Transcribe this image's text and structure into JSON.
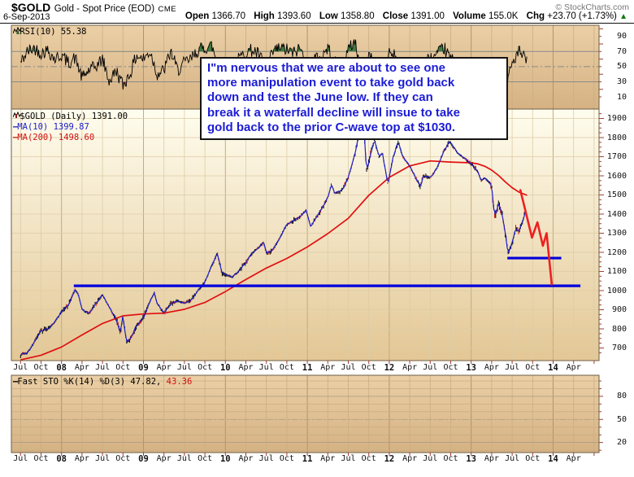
{
  "header": {
    "symbol": "$GOLD",
    "description": "Gold - Spot Price (EOD)",
    "exchange": "CME",
    "copyright": "© StockCharts.com",
    "date": "6-Sep-2013",
    "quote": {
      "open_label": "Open",
      "open": "1366.70",
      "high_label": "High",
      "high": "1393.60",
      "low_label": "Low",
      "low": "1358.80",
      "close_label": "Close",
      "close": "1391.00",
      "volume_label": "Volume",
      "volume": "155.0K",
      "chg_label": "Chg",
      "chg": "+23.70 (+1.73%)",
      "direction_icon": "▲"
    }
  },
  "rsi_panel": {
    "label": "RSI(10) 55.38"
  },
  "price_panel": {
    "symbol_line": "$GOLD (Daily) 1391.00",
    "ma10_label": "MA(10) 1399.87",
    "ma200_label": "MA(200) 1498.60",
    "dash": "—"
  },
  "sto_panel": {
    "label_black": "Fast STO %K(14) %D(3) 47.82,",
    "label_red": "43.36",
    "dash": "—"
  },
  "annotation": {
    "lines": [
      "I\"m nervous that we are about to see one",
      "more manipulation event to take gold back",
      "down and test the June low. If they can",
      "break it a waterfall decline will insue to take",
      "gold back to the prior C-wave top at $1030."
    ]
  },
  "colors": {
    "panel_tan_top": "#ebcfa6",
    "panel_tan_bottom": "#d5b283",
    "panel_cream_top": "#fffdee",
    "panel_cream_bottom": "#e3c795",
    "grid_tan": "#c9ae83",
    "grid_tan_year": "#b2946a",
    "grid_cream": "#ddcca6",
    "grid_cream_year": "#c4ab7f",
    "border": "#6e5e46",
    "rsi_line": "#000000",
    "rsi_fill_over": "#3e7a3e",
    "rsi_fill_under": "#c04040",
    "level_line": "#8a8a8a",
    "candle_black": "#000000",
    "candle_red": "#cc1111",
    "ma10": "#2020c8",
    "ma200": "#e01010",
    "support_blue": "#0000dd",
    "projection_red": "#ee2020",
    "tick": "#a04030",
    "annotation_blue": "#1c1cd6",
    "up_green": "#067a06"
  },
  "chart_data": [
    {
      "type": "line",
      "panel": "rsi",
      "title": "RSI(10)",
      "last_value": 55.38,
      "overbought": 70,
      "midline": 50,
      "oversold": 30,
      "ylim": [
        0,
        100
      ],
      "yticks": [
        90,
        70,
        50,
        30,
        10
      ],
      "anchors_month_value": [
        [
          -6,
          55
        ],
        [
          -5,
          70
        ],
        [
          -4,
          75
        ],
        [
          -3,
          68
        ],
        [
          -2,
          72
        ],
        [
          -1,
          60
        ],
        [
          0,
          65
        ],
        [
          1,
          55
        ],
        [
          2,
          62
        ],
        [
          3,
          35
        ],
        [
          4,
          45
        ],
        [
          5,
          50
        ],
        [
          6,
          60
        ],
        [
          7,
          30
        ],
        [
          8,
          45
        ],
        [
          9,
          25
        ],
        [
          10,
          40
        ],
        [
          11,
          65
        ],
        [
          12,
          60
        ],
        [
          13,
          70
        ],
        [
          14,
          40
        ],
        [
          15,
          45
        ],
        [
          16,
          70
        ],
        [
          17,
          45
        ],
        [
          18,
          55
        ],
        [
          19,
          60
        ],
        [
          20,
          72
        ],
        [
          21,
          75
        ],
        [
          22,
          78
        ],
        [
          23,
          50
        ],
        [
          24,
          40
        ],
        [
          25,
          55
        ],
        [
          26,
          60
        ],
        [
          27,
          70
        ],
        [
          28,
          72
        ],
        [
          29,
          65
        ],
        [
          30,
          45
        ],
        [
          31,
          70
        ],
        [
          32,
          75
        ],
        [
          33,
          72
        ],
        [
          34,
          68
        ],
        [
          35,
          75
        ],
        [
          36,
          45
        ],
        [
          37,
          60
        ],
        [
          38,
          62
        ],
        [
          39,
          75
        ],
        [
          40,
          55
        ],
        [
          41,
          50
        ],
        [
          42,
          72
        ],
        [
          43,
          85
        ],
        [
          44,
          35
        ],
        [
          45,
          65
        ],
        [
          46,
          55
        ],
        [
          47,
          35
        ],
        [
          48,
          70
        ],
        [
          49,
          65
        ],
        [
          50,
          45
        ],
        [
          51,
          50
        ],
        [
          52,
          30
        ],
        [
          53,
          55
        ],
        [
          54,
          60
        ],
        [
          55,
          65
        ],
        [
          56,
          75
        ],
        [
          57,
          60
        ],
        [
          58,
          55
        ],
        [
          59,
          48
        ],
        [
          60,
          50
        ],
        [
          61,
          30
        ],
        [
          62,
          50
        ],
        [
          63,
          25
        ],
        [
          64,
          45
        ],
        [
          65,
          22
        ],
        [
          66,
          55
        ],
        [
          67,
          70
        ],
        [
          68.2,
          55.38
        ]
      ]
    },
    {
      "type": "candlestick",
      "panel": "price",
      "title": "$GOLD Daily close",
      "last_close": 1391.0,
      "ma10": 1399.87,
      "ma200": 1498.6,
      "ylim": [
        650,
        1950
      ],
      "yticks": [
        1900,
        1800,
        1700,
        1600,
        1500,
        1400,
        1300,
        1200,
        1100,
        1000,
        900,
        800,
        700
      ],
      "price_anchors_month_value": [
        [
          -6,
          665
        ],
        [
          -5,
          675
        ],
        [
          -4,
          730
        ],
        [
          -3,
          792
        ],
        [
          -2,
          800
        ],
        [
          -1,
          835
        ],
        [
          0,
          890
        ],
        [
          1,
          925
        ],
        [
          2,
          1005
        ],
        [
          2.5,
          975
        ],
        [
          3,
          900
        ],
        [
          4,
          880
        ],
        [
          5,
          930
        ],
        [
          6,
          978
        ],
        [
          7,
          912
        ],
        [
          8,
          850
        ],
        [
          8.6,
          780
        ],
        [
          9,
          870
        ],
        [
          9.5,
          730
        ],
        [
          10,
          745
        ],
        [
          11,
          815
        ],
        [
          12,
          860
        ],
        [
          13,
          945
        ],
        [
          13.6,
          990
        ],
        [
          14,
          935
        ],
        [
          15,
          880
        ],
        [
          16,
          930
        ],
        [
          17,
          945
        ],
        [
          18,
          935
        ],
        [
          19,
          950
        ],
        [
          20,
          1000
        ],
        [
          21,
          1045
        ],
        [
          22,
          1130
        ],
        [
          22.8,
          1195
        ],
        [
          23.5,
          1090
        ],
        [
          24,
          1085
        ],
        [
          25,
          1070
        ],
        [
          26,
          1105
        ],
        [
          27,
          1145
        ],
        [
          28,
          1200
        ],
        [
          29,
          1230
        ],
        [
          29.6,
          1255
        ],
        [
          30,
          1195
        ],
        [
          31,
          1215
        ],
        [
          32,
          1280
        ],
        [
          33,
          1345
        ],
        [
          34,
          1365
        ],
        [
          35,
          1390
        ],
        [
          35.8,
          1420
        ],
        [
          36.5,
          1335
        ],
        [
          37,
          1365
        ],
        [
          38,
          1420
        ],
        [
          39,
          1485
        ],
        [
          39.5,
          1555
        ],
        [
          40,
          1510
        ],
        [
          41,
          1520
        ],
        [
          42,
          1590
        ],
        [
          43,
          1720
        ],
        [
          43.8,
          1870
        ],
        [
          44.2,
          1895
        ],
        [
          44.7,
          1620
        ],
        [
          45,
          1670
        ],
        [
          45.8,
          1790
        ],
        [
          46.5,
          1700
        ],
        [
          47,
          1720
        ],
        [
          47.8,
          1555
        ],
        [
          48.5,
          1690
        ],
        [
          49.3,
          1780
        ],
        [
          50,
          1700
        ],
        [
          51,
          1650
        ],
        [
          52,
          1580
        ],
        [
          52.6,
          1545
        ],
        [
          53,
          1600
        ],
        [
          54,
          1590
        ],
        [
          55,
          1640
        ],
        [
          56,
          1730
        ],
        [
          56.8,
          1780
        ],
        [
          57.5,
          1745
        ],
        [
          58,
          1720
        ],
        [
          59,
          1690
        ],
        [
          60,
          1665
        ],
        [
          61,
          1620
        ],
        [
          61.5,
          1575
        ],
        [
          62,
          1590
        ],
        [
          63,
          1550
        ],
        [
          63.4,
          1390
        ],
        [
          63.8,
          1420
        ],
        [
          64,
          1455
        ],
        [
          64.5,
          1400
        ],
        [
          65,
          1300
        ],
        [
          65.4,
          1190
        ],
        [
          66,
          1250
        ],
        [
          66.5,
          1320
        ],
        [
          67,
          1310
        ],
        [
          67.6,
          1370
        ],
        [
          67.9,
          1415
        ],
        [
          68.2,
          1391
        ]
      ],
      "ma200_anchors_month_value": [
        [
          -6,
          638
        ],
        [
          -3,
          662
        ],
        [
          0,
          705
        ],
        [
          3,
          768
        ],
        [
          6,
          828
        ],
        [
          9,
          868
        ],
        [
          12,
          878
        ],
        [
          15,
          882
        ],
        [
          18,
          902
        ],
        [
          21,
          938
        ],
        [
          24,
          995
        ],
        [
          27,
          1058
        ],
        [
          30,
          1118
        ],
        [
          33,
          1168
        ],
        [
          36,
          1228
        ],
        [
          39,
          1298
        ],
        [
          42,
          1378
        ],
        [
          45,
          1498
        ],
        [
          48,
          1592
        ],
        [
          51,
          1652
        ],
        [
          54,
          1678
        ],
        [
          57,
          1672
        ],
        [
          60,
          1668
        ],
        [
          61,
          1662
        ],
        [
          62,
          1650
        ],
        [
          63,
          1630
        ],
        [
          64,
          1602
        ],
        [
          65,
          1568
        ],
        [
          66,
          1538
        ],
        [
          67,
          1515
        ],
        [
          68.2,
          1498
        ]
      ],
      "support_line": {
        "price": 1025,
        "from_month": 1.8,
        "to_month": 76.0,
        "note": "horizontal line at prior C-wave top ~$1030"
      },
      "june_low_line": {
        "price": 1170,
        "from_month": 65.3,
        "to_month": 73.2,
        "note": "June 2013 low"
      },
      "projection_month_value": [
        [
          67.2,
          1525
        ],
        [
          68.9,
          1277
        ],
        [
          69.7,
          1357
        ],
        [
          70.5,
          1234
        ],
        [
          71.05,
          1300
        ],
        [
          71.8,
          1032
        ]
      ]
    },
    {
      "type": "line",
      "panel": "sto",
      "title": "Fast STO %K(14) %D(3)",
      "k_value": 47.82,
      "d_value": 43.36,
      "ylim": [
        0,
        100
      ],
      "yticks": [
        80,
        50,
        20
      ],
      "series_visible": false
    }
  ],
  "x_axis": {
    "labels": [
      {
        "t": "Jul",
        "q": -2
      },
      {
        "t": "Oct",
        "q": -1
      },
      {
        "t": "08",
        "q": 0
      },
      {
        "t": "Apr",
        "q": 1
      },
      {
        "t": "Jul",
        "q": 2
      },
      {
        "t": "Oct",
        "q": 3
      },
      {
        "t": "09",
        "q": 4
      },
      {
        "t": "Apr",
        "q": 5
      },
      {
        "t": "Jul",
        "q": 6
      },
      {
        "t": "Oct",
        "q": 7
      },
      {
        "t": "10",
        "q": 8
      },
      {
        "t": "Apr",
        "q": 9
      },
      {
        "t": "Jul",
        "q": 10
      },
      {
        "t": "Oct",
        "q": 11
      },
      {
        "t": "11",
        "q": 12
      },
      {
        "t": "Apr",
        "q": 13
      },
      {
        "t": "Jul",
        "q": 14
      },
      {
        "t": "Oct",
        "q": 15
      },
      {
        "t": "12",
        "q": 16
      },
      {
        "t": "Apr",
        "q": 17
      },
      {
        "t": "Jul",
        "q": 18
      },
      {
        "t": "Oct",
        "q": 19
      },
      {
        "t": "13",
        "q": 20
      },
      {
        "t": "Apr",
        "q": 21
      },
      {
        "t": "Jul",
        "q": 22
      },
      {
        "t": "Oct",
        "q": 23
      },
      {
        "t": "14",
        "q": 24
      },
      {
        "t": "Apr",
        "q": 25
      }
    ]
  }
}
